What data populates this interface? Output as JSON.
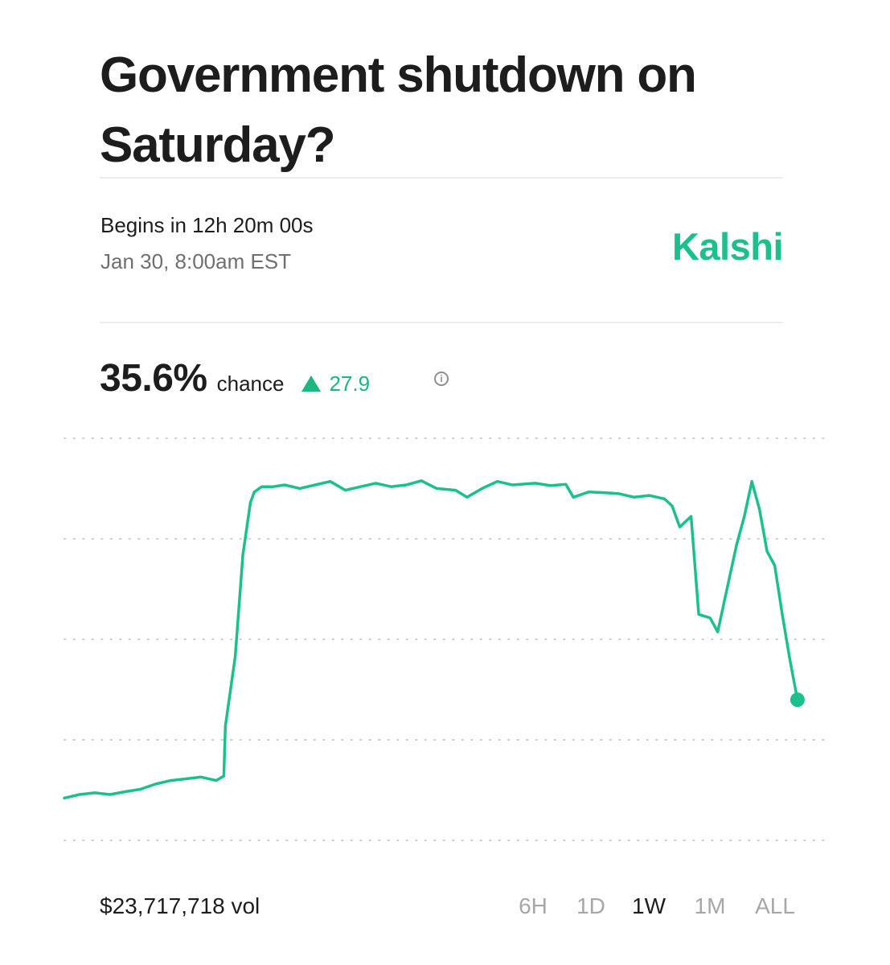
{
  "header": {
    "title": "Government shutdown on Saturday?"
  },
  "schedule": {
    "begins": "Begins in 12h 20m 00s",
    "date": "Jan 30, 8:00am EST"
  },
  "brand": {
    "name": "Kalshi",
    "color": "#1cc08a"
  },
  "stats": {
    "probability": "35.6%",
    "probability_label": "chance",
    "change": "27.9",
    "change_direction": "up",
    "info_icon": "info-icon"
  },
  "chart_data": {
    "type": "line",
    "series": [
      {
        "color": "#1cc08a",
        "points": [
          [
            0.0,
            7.5
          ],
          [
            0.02,
            8.5
          ],
          [
            0.04,
            9.0
          ],
          [
            0.06,
            8.5
          ],
          [
            0.08,
            9.3
          ],
          [
            0.1,
            10.0
          ],
          [
            0.12,
            11.5
          ],
          [
            0.14,
            12.5
          ],
          [
            0.16,
            13.0
          ],
          [
            0.18,
            13.5
          ],
          [
            0.2,
            12.5
          ],
          [
            0.21,
            13.8
          ],
          [
            0.212,
            28.0
          ],
          [
            0.225,
            48.0
          ],
          [
            0.235,
            77.0
          ],
          [
            0.245,
            92.0
          ],
          [
            0.25,
            95.0
          ],
          [
            0.26,
            96.5
          ],
          [
            0.275,
            96.5
          ],
          [
            0.29,
            97.0
          ],
          [
            0.31,
            96.0
          ],
          [
            0.33,
            97.0
          ],
          [
            0.35,
            98.0
          ],
          [
            0.37,
            95.5
          ],
          [
            0.39,
            96.5
          ],
          [
            0.41,
            97.5
          ],
          [
            0.43,
            96.5
          ],
          [
            0.45,
            97.0
          ],
          [
            0.47,
            98.2
          ],
          [
            0.49,
            96.0
          ],
          [
            0.515,
            95.5
          ],
          [
            0.53,
            93.5
          ],
          [
            0.55,
            96.0
          ],
          [
            0.57,
            98.0
          ],
          [
            0.59,
            97.0
          ],
          [
            0.62,
            97.5
          ],
          [
            0.64,
            96.8
          ],
          [
            0.66,
            97.2
          ],
          [
            0.67,
            93.5
          ],
          [
            0.69,
            95.0
          ],
          [
            0.71,
            94.8
          ],
          [
            0.73,
            94.5
          ],
          [
            0.75,
            93.5
          ],
          [
            0.77,
            94.0
          ],
          [
            0.79,
            93.0
          ],
          [
            0.8,
            91.0
          ],
          [
            0.81,
            85.0
          ],
          [
            0.825,
            88.0
          ],
          [
            0.835,
            60.0
          ],
          [
            0.85,
            59.0
          ],
          [
            0.86,
            55.0
          ],
          [
            0.87,
            65.0
          ],
          [
            0.885,
            80.0
          ],
          [
            0.895,
            88.0
          ],
          [
            0.905,
            98.0
          ],
          [
            0.915,
            90.0
          ],
          [
            0.925,
            78.0
          ],
          [
            0.935,
            74.0
          ],
          [
            0.945,
            60.0
          ],
          [
            0.955,
            47.0
          ],
          [
            0.965,
            35.6
          ]
        ]
      }
    ],
    "ylim": [
      0,
      100
    ],
    "gridlines": 5,
    "grid": "dotted",
    "end_marker": true
  },
  "footer": {
    "volume": "$23,717,718 vol",
    "ranges": [
      "6H",
      "1D",
      "1W",
      "1M",
      "ALL"
    ],
    "active_range": "1W"
  }
}
